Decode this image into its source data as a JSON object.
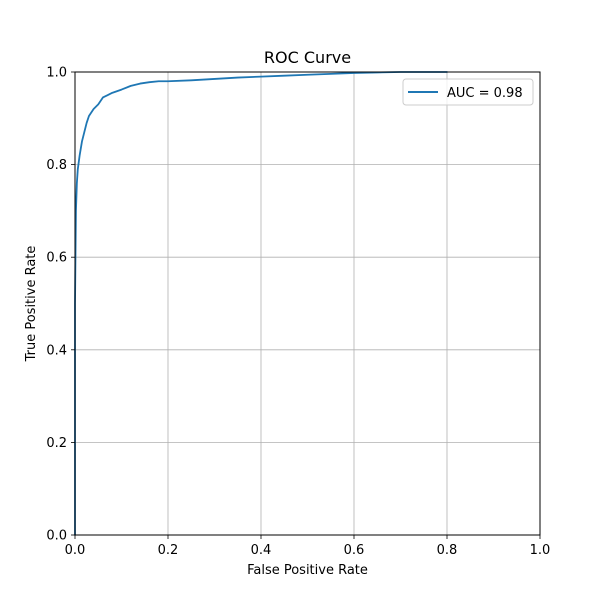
{
  "chart_data": {
    "type": "line",
    "title": "ROC Curve",
    "xlabel": "False Positive Rate",
    "ylabel": "True Positive Rate",
    "xlim": [
      0.0,
      1.0
    ],
    "ylim": [
      0.0,
      1.0
    ],
    "xticks": [
      "0.0",
      "0.2",
      "0.4",
      "0.6",
      "0.8",
      "1.0"
    ],
    "yticks": [
      "0.0",
      "0.2",
      "0.4",
      "0.6",
      "0.8",
      "1.0"
    ],
    "grid": true,
    "legend_position": "top-right",
    "series": [
      {
        "name": "AUC = 0.98",
        "color": "#1f77b4",
        "x": [
          0.0,
          0.0,
          0.002,
          0.004,
          0.006,
          0.01,
          0.015,
          0.02,
          0.025,
          0.03,
          0.04,
          0.05,
          0.06,
          0.07,
          0.08,
          0.1,
          0.12,
          0.14,
          0.16,
          0.18,
          0.2,
          0.25,
          0.3,
          0.35,
          0.4,
          0.45,
          0.5,
          0.55,
          0.6,
          0.65,
          0.7,
          0.75,
          0.8
        ],
        "y": [
          0.0,
          0.5,
          0.7,
          0.76,
          0.79,
          0.82,
          0.85,
          0.87,
          0.89,
          0.905,
          0.92,
          0.93,
          0.945,
          0.95,
          0.955,
          0.962,
          0.97,
          0.975,
          0.978,
          0.98,
          0.98,
          0.982,
          0.985,
          0.988,
          0.99,
          0.992,
          0.994,
          0.996,
          0.998,
          0.999,
          1.0,
          1.0,
          1.0
        ]
      }
    ]
  }
}
